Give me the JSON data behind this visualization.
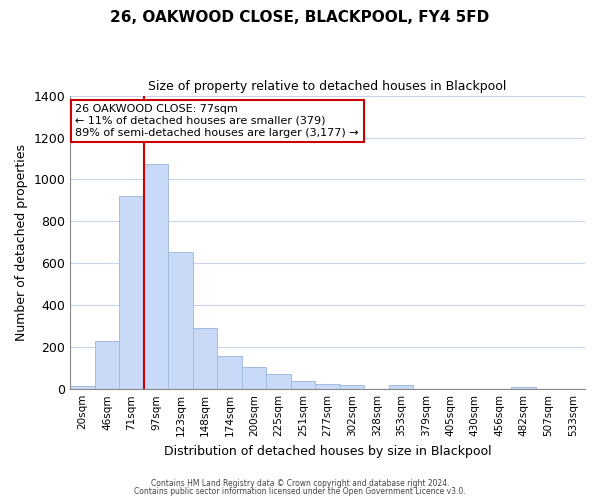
{
  "title": "26, OAKWOOD CLOSE, BLACKPOOL, FY4 5FD",
  "subtitle": "Size of property relative to detached houses in Blackpool",
  "xlabel": "Distribution of detached houses by size in Blackpool",
  "ylabel": "Number of detached properties",
  "bar_labels": [
    "20sqm",
    "46sqm",
    "71sqm",
    "97sqm",
    "123sqm",
    "148sqm",
    "174sqm",
    "200sqm",
    "225sqm",
    "251sqm",
    "277sqm",
    "302sqm",
    "328sqm",
    "353sqm",
    "379sqm",
    "405sqm",
    "430sqm",
    "456sqm",
    "482sqm",
    "507sqm",
    "533sqm"
  ],
  "bar_values": [
    15,
    230,
    920,
    1075,
    655,
    290,
    158,
    108,
    70,
    40,
    25,
    20,
    0,
    18,
    0,
    0,
    0,
    0,
    10,
    0,
    0
  ],
  "bar_color": "#c9daf8",
  "bar_edge_color": "#a4bce0",
  "vline_color": "#cc0000",
  "vline_x_index": 3,
  "ylim": [
    0,
    1400
  ],
  "yticks": [
    0,
    200,
    400,
    600,
    800,
    1000,
    1200,
    1400
  ],
  "annotation_title": "26 OAKWOOD CLOSE: 77sqm",
  "annotation_line1": "← 11% of detached houses are smaller (379)",
  "annotation_line2": "89% of semi-detached houses are larger (3,177) →",
  "annotation_box_facecolor": "#ffffff",
  "annotation_box_edgecolor": "#cc0000",
  "footer1": "Contains HM Land Registry data © Crown copyright and database right 2024.",
  "footer2": "Contains public sector information licensed under the Open Government Licence v3.0.",
  "background_color": "#ffffff",
  "grid_color": "#c8d4e8"
}
